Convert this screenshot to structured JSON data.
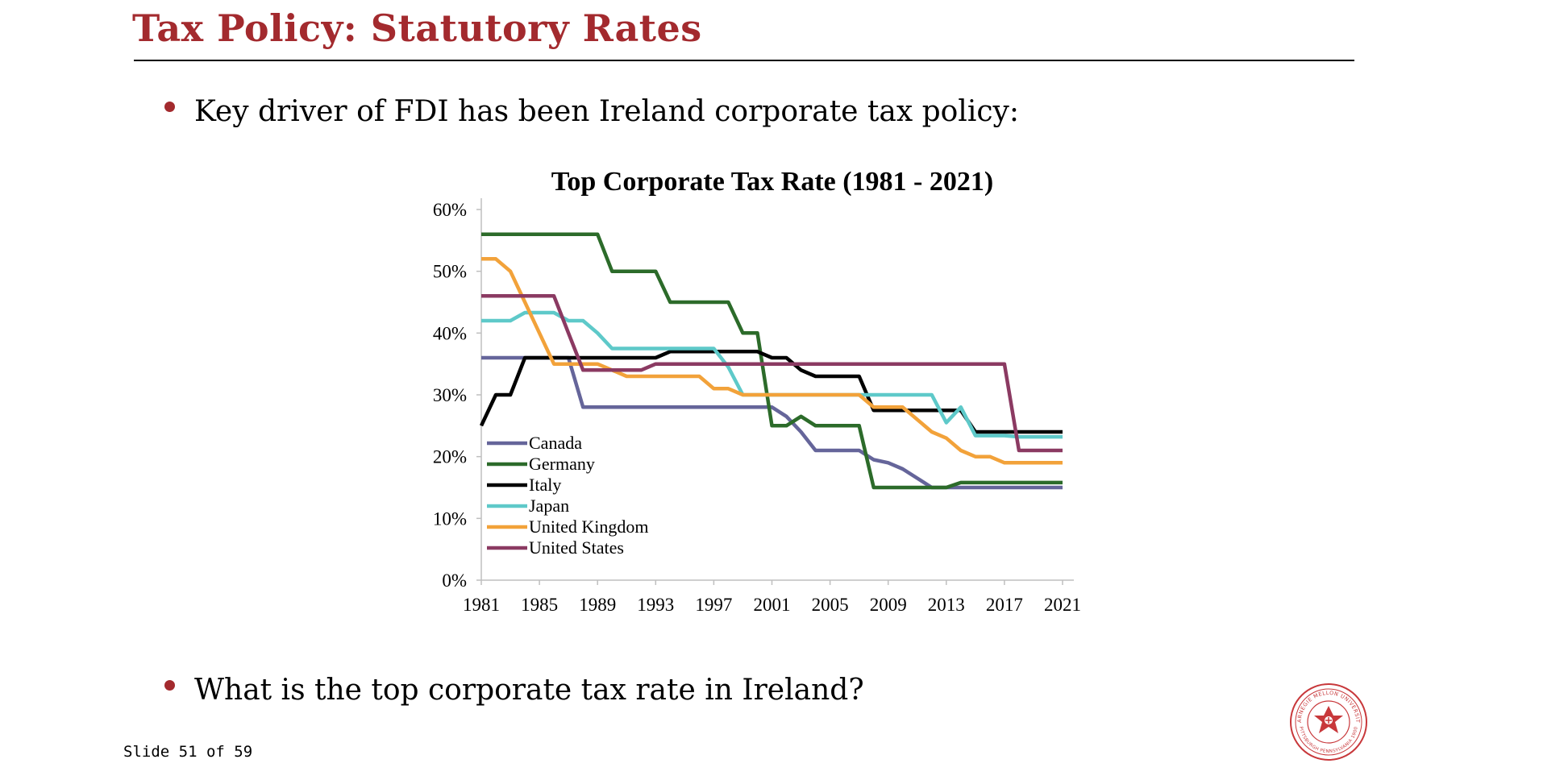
{
  "slide": {
    "title": "Tax Policy: Statutory Rates",
    "bullets": [
      "Key driver of FDI has been Ireland corporate tax policy:",
      "What is the top corporate tax rate in Ireland?"
    ],
    "slide_number": "Slide 51 of 59"
  },
  "colors": {
    "accent": "#A32A2E",
    "Canada": "#65659A",
    "Germany": "#2C6B2A",
    "Italy": "#000000",
    "Japan": "#5EC9C9",
    "United Kingdom": "#F2A23A",
    "United States": "#8B3A62"
  },
  "logo": {
    "name": "university-seal",
    "text": "CARNEGIE MELLON UNIVERSITY · PITTSBURGH PENNSYLVANIA 1900"
  },
  "chart_data": {
    "type": "line",
    "title": "Top Corporate Tax Rate (1981 - 2021)",
    "xlabel": "",
    "ylabel": "",
    "x_tick_labels": [
      "1981",
      "1985",
      "1989",
      "1993",
      "1997",
      "2001",
      "2005",
      "2009",
      "2013",
      "2017",
      "2021"
    ],
    "y_tick_labels": [
      "0%",
      "10%",
      "20%",
      "30%",
      "40%",
      "50%",
      "60%"
    ],
    "xlim": [
      1981,
      2021
    ],
    "ylim": [
      0,
      60
    ],
    "grid": false,
    "legend_position": "bottom-left",
    "x": [
      1981,
      1982,
      1983,
      1984,
      1985,
      1986,
      1987,
      1988,
      1989,
      1990,
      1991,
      1992,
      1993,
      1994,
      1995,
      1996,
      1997,
      1998,
      1999,
      2000,
      2001,
      2002,
      2003,
      2004,
      2005,
      2006,
      2007,
      2008,
      2009,
      2010,
      2011,
      2012,
      2013,
      2014,
      2015,
      2016,
      2017,
      2018,
      2019,
      2020,
      2021
    ],
    "series": [
      {
        "name": "Canada",
        "values": [
          36,
          36,
          36,
          36,
          36,
          36,
          36,
          28,
          28,
          28,
          28,
          28,
          28,
          28,
          28,
          28,
          28,
          28,
          28,
          28,
          28,
          26.5,
          24,
          21,
          21,
          21,
          21,
          19.5,
          19,
          18,
          16.5,
          15,
          15,
          15,
          15,
          15,
          15,
          15,
          15,
          15,
          15
        ]
      },
      {
        "name": "Germany",
        "values": [
          56,
          56,
          56,
          56,
          56,
          56,
          56,
          56,
          56,
          50,
          50,
          50,
          50,
          45,
          45,
          45,
          45,
          45,
          40,
          40,
          25,
          25,
          26.5,
          25,
          25,
          25,
          25,
          15,
          15,
          15,
          15,
          15,
          15,
          15.8,
          15.8,
          15.8,
          15.8,
          15.8,
          15.8,
          15.8,
          15.8
        ]
      },
      {
        "name": "Italy",
        "values": [
          25,
          30,
          30,
          36,
          36,
          36,
          36,
          36,
          36,
          36,
          36,
          36,
          36,
          37,
          37,
          37,
          37,
          37,
          37,
          37,
          36,
          36,
          34,
          33,
          33,
          33,
          33,
          27.5,
          27.5,
          27.5,
          27.5,
          27.5,
          27.5,
          27.5,
          24,
          24,
          24,
          24,
          24,
          24,
          24
        ]
      },
      {
        "name": "Japan",
        "values": [
          42,
          42,
          42,
          43.3,
          43.3,
          43.3,
          42,
          42,
          40,
          37.5,
          37.5,
          37.5,
          37.5,
          37.5,
          37.5,
          37.5,
          37.5,
          34.5,
          30,
          30,
          30,
          30,
          30,
          30,
          30,
          30,
          30,
          30,
          30,
          30,
          30,
          30,
          25.5,
          28,
          23.4,
          23.4,
          23.4,
          23.2,
          23.2,
          23.2,
          23.2
        ]
      },
      {
        "name": "United Kingdom",
        "values": [
          52,
          52,
          50,
          45,
          40,
          35,
          35,
          35,
          35,
          34,
          33,
          33,
          33,
          33,
          33,
          33,
          31,
          31,
          30,
          30,
          30,
          30,
          30,
          30,
          30,
          30,
          30,
          28,
          28,
          28,
          26,
          24,
          23,
          21,
          20,
          20,
          19,
          19,
          19,
          19,
          19
        ]
      },
      {
        "name": "United States",
        "values": [
          46,
          46,
          46,
          46,
          46,
          46,
          40,
          34,
          34,
          34,
          34,
          34,
          35,
          35,
          35,
          35,
          35,
          35,
          35,
          35,
          35,
          35,
          35,
          35,
          35,
          35,
          35,
          35,
          35,
          35,
          35,
          35,
          35,
          35,
          35,
          35,
          35,
          21,
          21,
          21,
          21
        ]
      }
    ]
  }
}
